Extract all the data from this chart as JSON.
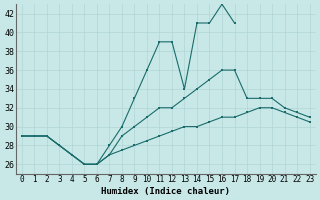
{
  "xlabel": "Humidex (Indice chaleur)",
  "background_color": "#c8e8e8",
  "grid_color": "#b0d4d4",
  "line_color": "#1a6b6b",
  "xlim": [
    -0.5,
    23.5
  ],
  "ylim": [
    25,
    43
  ],
  "yticks": [
    26,
    28,
    30,
    32,
    34,
    36,
    38,
    40,
    42
  ],
  "xticks": [
    0,
    1,
    2,
    3,
    4,
    5,
    6,
    7,
    8,
    9,
    10,
    11,
    12,
    13,
    14,
    15,
    16,
    17,
    18,
    19,
    20,
    21,
    22,
    23
  ],
  "line1_x": [
    0,
    1,
    2,
    3,
    4,
    5,
    6,
    7,
    8,
    9,
    10,
    11,
    12,
    13,
    14,
    15,
    16,
    17
  ],
  "line1_y": [
    29,
    29,
    29,
    28,
    27,
    26,
    26,
    28,
    30,
    33,
    36,
    39,
    39,
    34,
    41,
    41,
    43,
    41
  ],
  "line2_x": [
    0,
    1,
    2,
    3,
    4,
    5,
    6,
    7,
    8,
    9,
    10,
    11,
    12,
    13,
    14,
    15,
    16,
    17,
    18,
    19,
    20,
    21,
    22,
    23
  ],
  "line2_y": [
    29,
    29,
    29,
    28,
    27,
    26,
    26,
    27,
    29,
    30,
    31,
    32,
    32,
    33,
    34,
    35,
    36,
    36,
    33,
    33,
    33,
    32,
    31.5,
    31
  ],
  "line3_x": [
    0,
    1,
    2,
    3,
    4,
    5,
    6,
    7,
    8,
    9,
    10,
    11,
    12,
    13,
    14,
    15,
    16,
    17,
    18,
    19,
    20,
    21,
    22,
    23
  ],
  "line3_y": [
    29,
    29,
    29,
    28,
    27,
    26,
    26,
    27,
    27.5,
    28,
    28.5,
    29,
    29.5,
    30,
    30,
    30.5,
    31,
    31,
    31.5,
    32,
    32,
    31.5,
    31,
    30.5
  ]
}
